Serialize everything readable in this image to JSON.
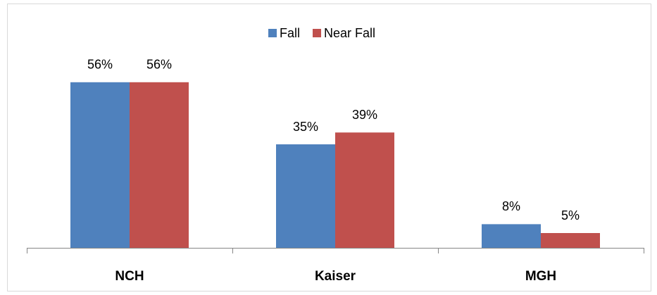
{
  "chart_data": {
    "type": "bar",
    "categories": [
      "NCH",
      "Kaiser",
      "MGH"
    ],
    "series": [
      {
        "name": "Fall",
        "color": "#4f81bd",
        "values": [
          56,
          35,
          8
        ],
        "value_labels": [
          "56%",
          "35%",
          "8%"
        ]
      },
      {
        "name": "Near Fall",
        "color": "#c0504d",
        "values": [
          56,
          39,
          5
        ],
        "value_labels": [
          "56%",
          "39%",
          "5%"
        ]
      }
    ],
    "ylim": [
      0,
      60
    ],
    "legend": "top"
  }
}
